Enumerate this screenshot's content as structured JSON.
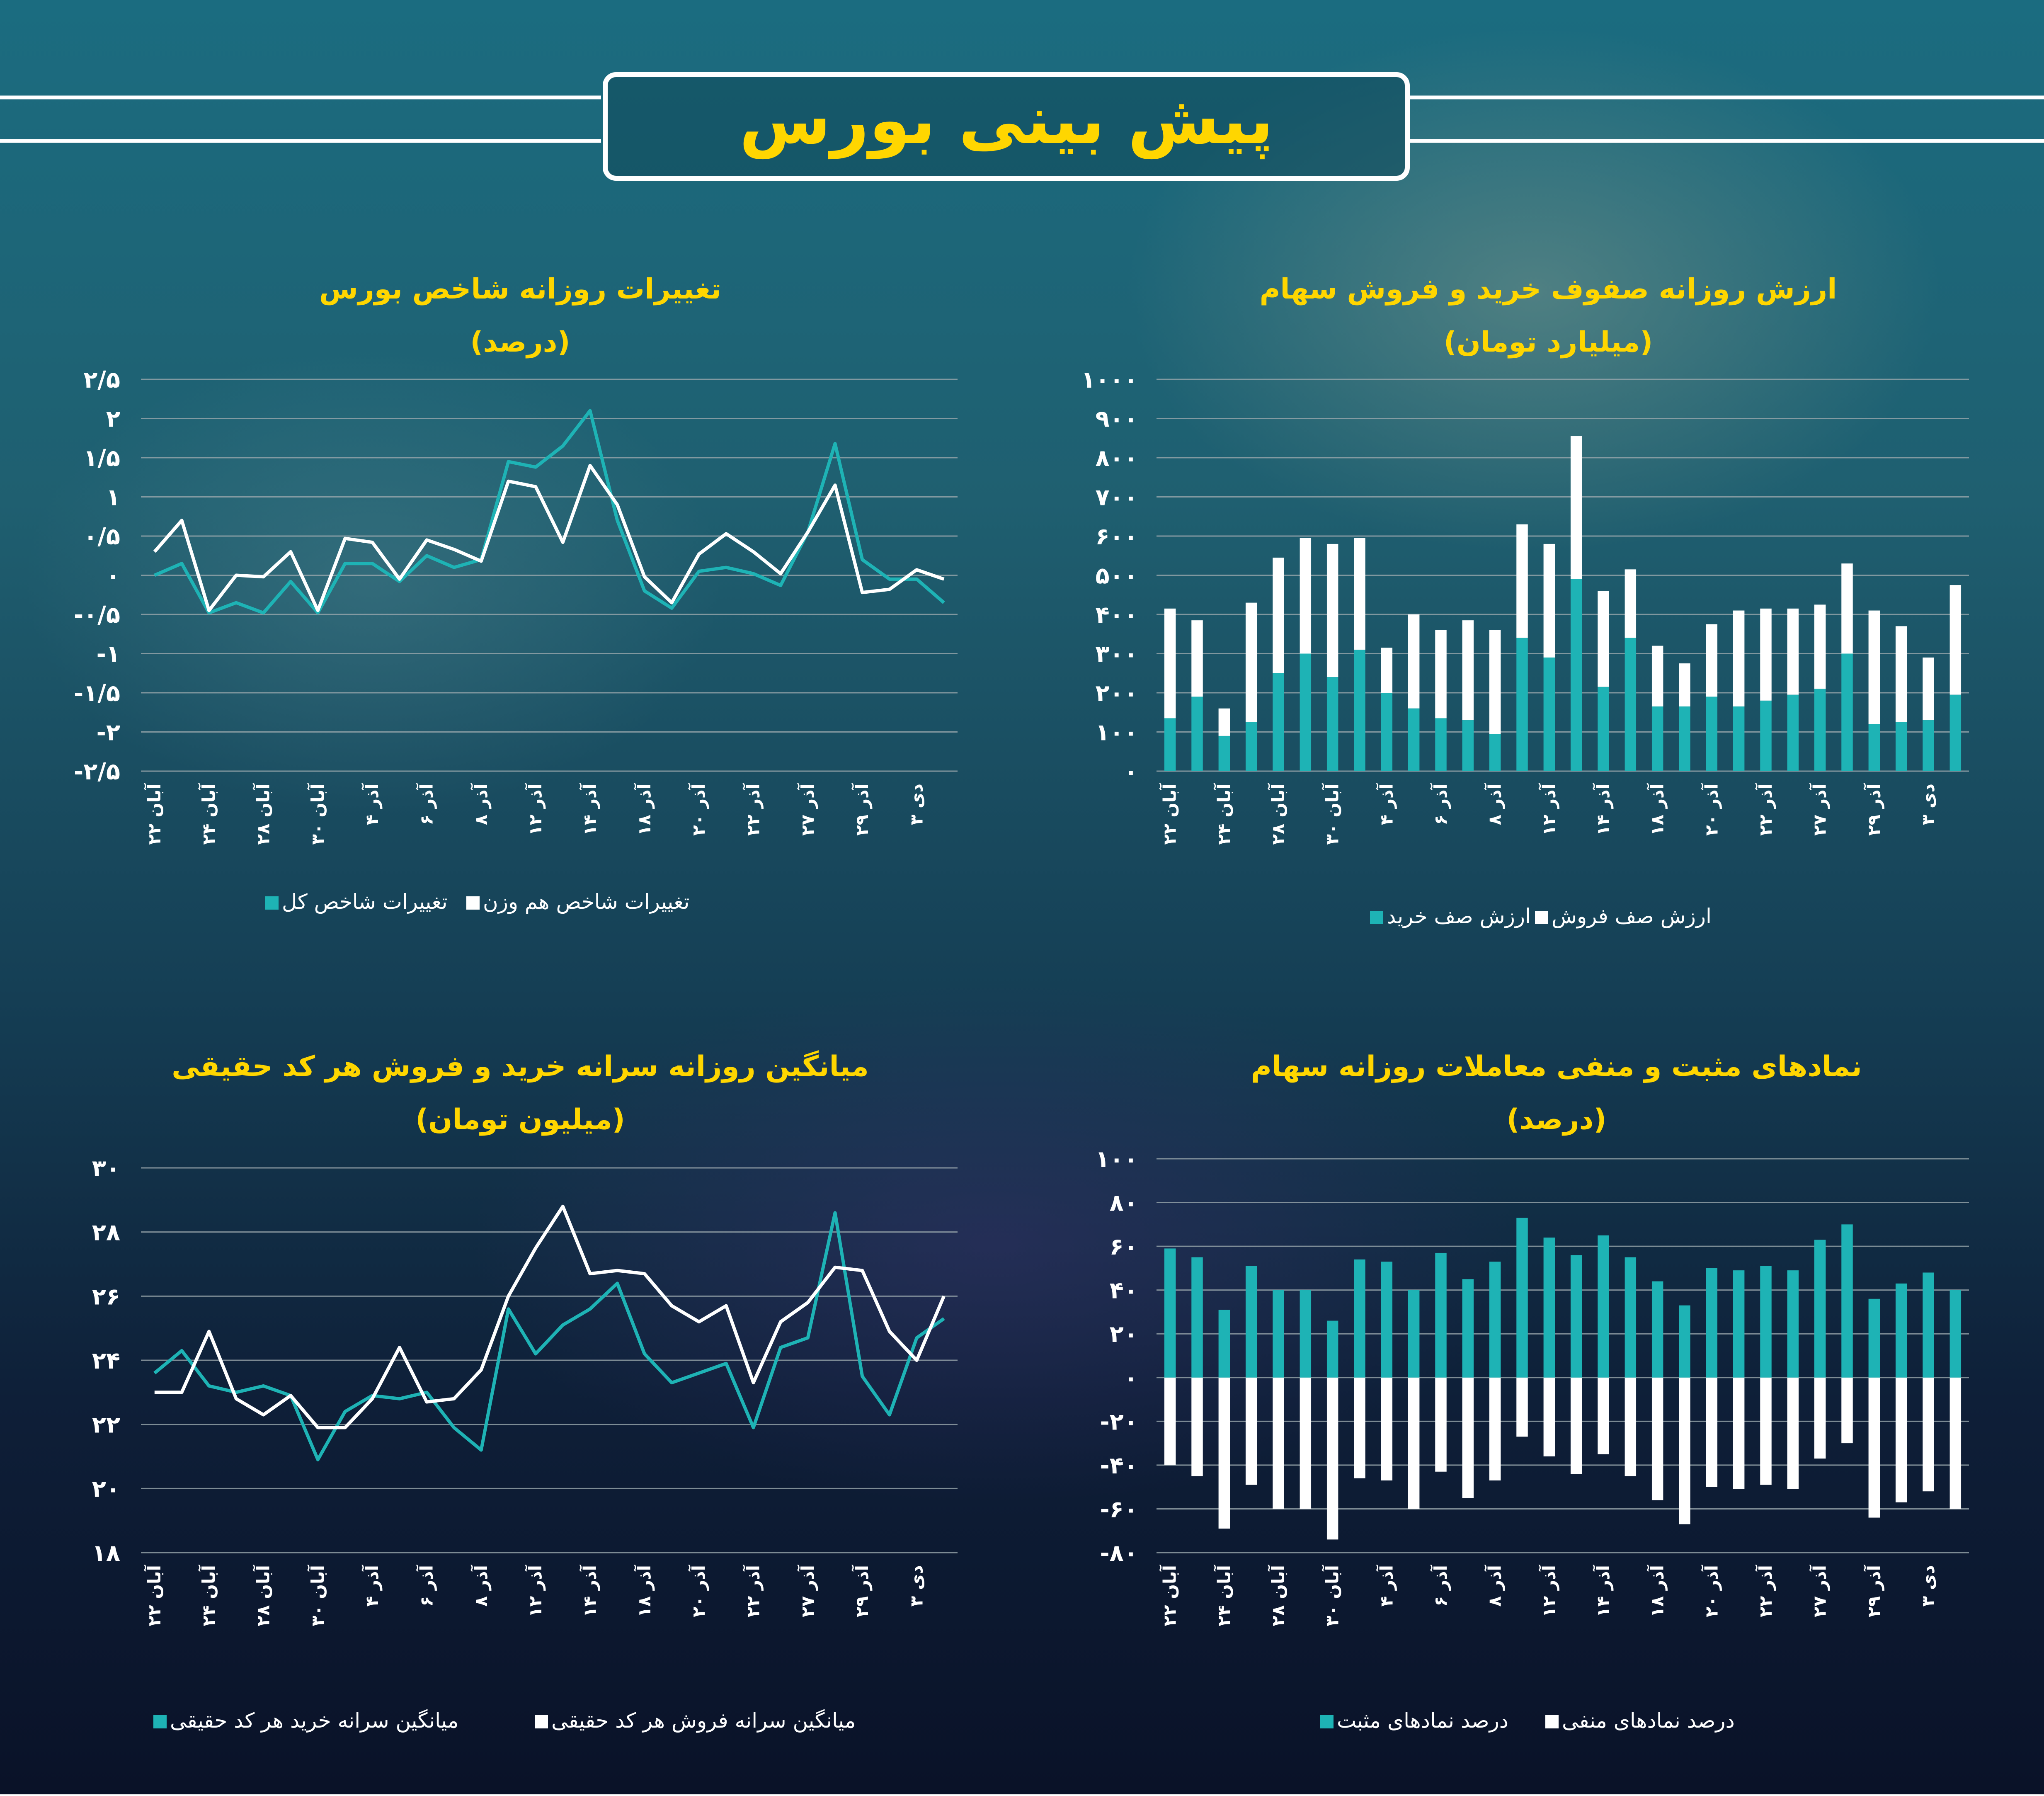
{
  "header": {
    "title": "پیش بینی بورس"
  },
  "colors": {
    "teal": "#1eb3b5",
    "white": "#ffffff",
    "title_yellow": "#ffd600"
  },
  "x_dates_short": [
    "۲۲ آبان",
    "۲۴ آبان",
    "۲۸ آبان",
    "۳۰ آبان",
    "۴ آذر",
    "۶ آذر",
    "۸ آذر",
    "۱۲ آذر",
    "۱۴ آذر",
    "۱۸ آذر",
    "۲۰ آذر",
    "۲۲ آذر",
    "۲۷ آذر",
    "۲۹ آذر",
    "۳ دی"
  ],
  "x_dates_long": [
    "۲۲ آبان",
    "۲۴ آبان",
    "۲۸ آبان",
    "۳۰ آبان",
    "۴ آذر",
    "۶ آذر",
    "۸ آذر",
    "۱۲ آذر",
    "۱۴ آذر",
    "۱۸ آذر",
    "۲۰ آذر",
    "۲۲ آذر",
    "۲۷ آذر",
    "۲۹ آذر",
    "۳ دی"
  ],
  "chart_data": [
    {
      "id": "index",
      "type": "line",
      "title": "تغییرات روزانه شاخص بورس",
      "subtitle": "(درصد)",
      "ylim": [
        -2.5,
        2.5
      ],
      "yticks": [
        "۲/۵",
        "۲",
        "۱/۵",
        "۱",
        "۰/۵",
        "۰",
        "-۰/۵",
        "-۱",
        "-۱/۵",
        "-۲",
        "-۲/۵"
      ],
      "ytick_values": [
        2.5,
        2,
        1.5,
        1,
        0.5,
        0,
        -0.5,
        -1,
        -1.5,
        -2,
        -2.5
      ],
      "series": [
        {
          "name": "تغییرات شاخص کل",
          "color": "#1eb3b5",
          "values": [
            0,
            0.15,
            -0.48,
            -0.35,
            -0.48,
            -0.08,
            -0.48,
            0.15,
            0.15,
            -0.08,
            0.25,
            0.1,
            0.2,
            1.45,
            1.38,
            1.65,
            2.1,
            0.7,
            -0.2,
            -0.42,
            0.05,
            0.1,
            0.02,
            -0.13,
            0.55,
            1.68,
            0.2,
            -0.05,
            -0.05,
            -0.35
          ]
        },
        {
          "name": "تغییرات شاخص هم وزن",
          "color": "#ffffff",
          "values": [
            0.3,
            0.7,
            -0.45,
            0,
            -0.02,
            0.3,
            -0.45,
            0.47,
            0.42,
            -0.05,
            0.45,
            0.33,
            0.18,
            1.2,
            1.13,
            0.42,
            1.4,
            0.9,
            -0.02,
            -0.35,
            0.27,
            0.53,
            0.3,
            0.02,
            0.55,
            1.15,
            -0.22,
            -0.18,
            0.07,
            -0.05
          ]
        }
      ]
    },
    {
      "id": "queues",
      "type": "bar",
      "stacked": true,
      "title": "ارزش روزانه صفوف خرید و فروش سهام",
      "subtitle": "(میلیارد تومان)",
      "ylim": [
        0,
        1000
      ],
      "yticks": [
        "۱۰۰۰",
        "۹۰۰",
        "۸۰۰",
        "۷۰۰",
        "۶۰۰",
        "۵۰۰",
        "۴۰۰",
        "۳۰۰",
        "۲۰۰",
        "۱۰۰",
        "۰"
      ],
      "ytick_values": [
        1000,
        900,
        800,
        700,
        600,
        500,
        400,
        300,
        200,
        100,
        0
      ],
      "series": [
        {
          "name": "ارزش صف خرید",
          "color": "#1eb3b5",
          "values": [
            135,
            190,
            90,
            125,
            250,
            300,
            240,
            310,
            200,
            160,
            135,
            130,
            95,
            340,
            290,
            490,
            215,
            340,
            165,
            165,
            190,
            165,
            180,
            195,
            210,
            300,
            120,
            125,
            130,
            195
          ]
        },
        {
          "name": "ارزش صف فروش",
          "color": "#ffffff",
          "values": [
            280,
            195,
            70,
            305,
            295,
            295,
            340,
            285,
            115,
            240,
            225,
            255,
            265,
            290,
            290,
            365,
            245,
            175,
            155,
            110,
            185,
            245,
            235,
            220,
            215,
            230,
            290,
            245,
            160,
            280
          ]
        }
      ]
    },
    {
      "id": "per_capita",
      "type": "line",
      "title": "میانگین روزانه سرانه خرید و فروش هر کد حقیقی",
      "subtitle": "(میلیون تومان)",
      "ylim": [
        18,
        30
      ],
      "yticks": [
        "۳۰",
        "۲۸",
        "۲۶",
        "۲۴",
        "۲۲",
        "۲۰",
        "۱۸"
      ],
      "ytick_values": [
        30,
        28,
        26,
        24,
        22,
        20,
        18
      ],
      "series": [
        {
          "name": "میانگین سرانه خرید هر کد حقیقی",
          "color": "#1eb3b5",
          "values": [
            23.6,
            24.3,
            23.2,
            23,
            23.2,
            22.9,
            20.9,
            22.4,
            22.9,
            22.8,
            23,
            21.9,
            21.2,
            25.6,
            24.2,
            25.1,
            25.6,
            26.4,
            24.2,
            23.3,
            23.6,
            23.9,
            21.9,
            24.4,
            24.7,
            28.6,
            23.5,
            22.3,
            24.7,
            25.3
          ]
        },
        {
          "name": "میانگین سرانه فروش هر کد حقیقی",
          "color": "#ffffff",
          "values": [
            23,
            23,
            24.9,
            22.8,
            22.3,
            22.9,
            21.9,
            21.9,
            22.8,
            24.4,
            22.7,
            22.8,
            23.7,
            26,
            27.5,
            28.8,
            26.7,
            26.8,
            26.7,
            25.7,
            25.2,
            25.7,
            23.3,
            25.2,
            25.8,
            26.9,
            26.8,
            24.9,
            24,
            26
          ]
        }
      ]
    },
    {
      "id": "pos_neg",
      "type": "bar",
      "title": "نمادهای مثبت و منفی معاملات روزانه سهام",
      "subtitle": "(درصد)",
      "ylim": [
        -80,
        100
      ],
      "yticks": [
        "۱۰۰",
        "۸۰",
        "۶۰",
        "۴۰",
        "۲۰",
        "۰",
        "-۲۰",
        "-۴۰",
        "-۶۰",
        "-۸۰"
      ],
      "ytick_values": [
        100,
        80,
        60,
        40,
        20,
        0,
        -20,
        -40,
        -60,
        -80
      ],
      "series": [
        {
          "name": "درصد نمادهای مثبت",
          "color": "#1eb3b5",
          "values": [
            59,
            55,
            31,
            51,
            40,
            40,
            26,
            54,
            53,
            40,
            57,
            45,
            53,
            73,
            64,
            56,
            65,
            55,
            44,
            33,
            50,
            49,
            51,
            49,
            63,
            70,
            36,
            43,
            48,
            40
          ]
        },
        {
          "name": "درصد نمادهای منفی",
          "color": "#ffffff",
          "values": [
            -40,
            -45,
            -69,
            -49,
            -60,
            -60,
            -74,
            -46,
            -47,
            -60,
            -43,
            -55,
            -47,
            -27,
            -36,
            -44,
            -35,
            -45,
            -56,
            -67,
            -50,
            -51,
            -49,
            -51,
            -37,
            -30,
            -64,
            -57,
            -52,
            -60
          ]
        }
      ]
    }
  ]
}
